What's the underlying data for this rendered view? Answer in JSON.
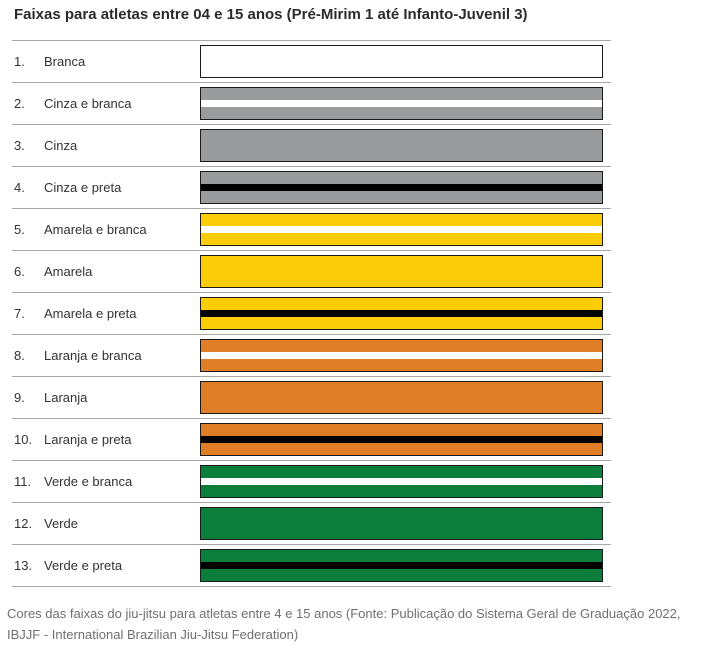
{
  "title": "Faixas para atletas entre 04 e 15 anos (Pré-Mirim 1 até Infanto-Juvenil 3)",
  "belts": [
    {
      "number": "1.",
      "name": "Branca",
      "color": "#ffffff",
      "stripe": null
    },
    {
      "number": "2.",
      "name": "Cinza e branca",
      "color": "#9a9b9d",
      "stripe": "#ffffff"
    },
    {
      "number": "3.",
      "name": "Cinza",
      "color": "#9a9b9d",
      "stripe": null
    },
    {
      "number": "4.",
      "name": "Cinza e preta",
      "color": "#9a9b9d",
      "stripe": "#000000"
    },
    {
      "number": "5.",
      "name": "Amarela e branca",
      "color": "#fccc08",
      "stripe": "#ffffff"
    },
    {
      "number": "6.",
      "name": "Amarela",
      "color": "#fccc08",
      "stripe": null
    },
    {
      "number": "7.",
      "name": "Amarela e preta",
      "color": "#fccc08",
      "stripe": "#000000"
    },
    {
      "number": "8.",
      "name": "Laranja e branca",
      "color": "#e07e27",
      "stripe": "#ffffff"
    },
    {
      "number": "9.",
      "name": "Laranja",
      "color": "#e07e27",
      "stripe": null
    },
    {
      "number": "10.",
      "name": "Laranja e preta",
      "color": "#e07e27",
      "stripe": "#000000"
    },
    {
      "number": "11.",
      "name": "Verde e branca",
      "color": "#0b7e3b",
      "stripe": "#ffffff"
    },
    {
      "number": "12.",
      "name": "Verde",
      "color": "#0b7e3b",
      "stripe": null
    },
    {
      "number": "13.",
      "name": "Verde e preta",
      "color": "#0b7e3b",
      "stripe": "#000000"
    }
  ],
  "caption": "Cores das faixas do jiu-jitsu para atletas entre 4 e 15 anos (Fonte: Publicação do Sistema Geral de Graduação 2022, IBJJF - International Brazilian Jiu-Jitsu Federation)"
}
